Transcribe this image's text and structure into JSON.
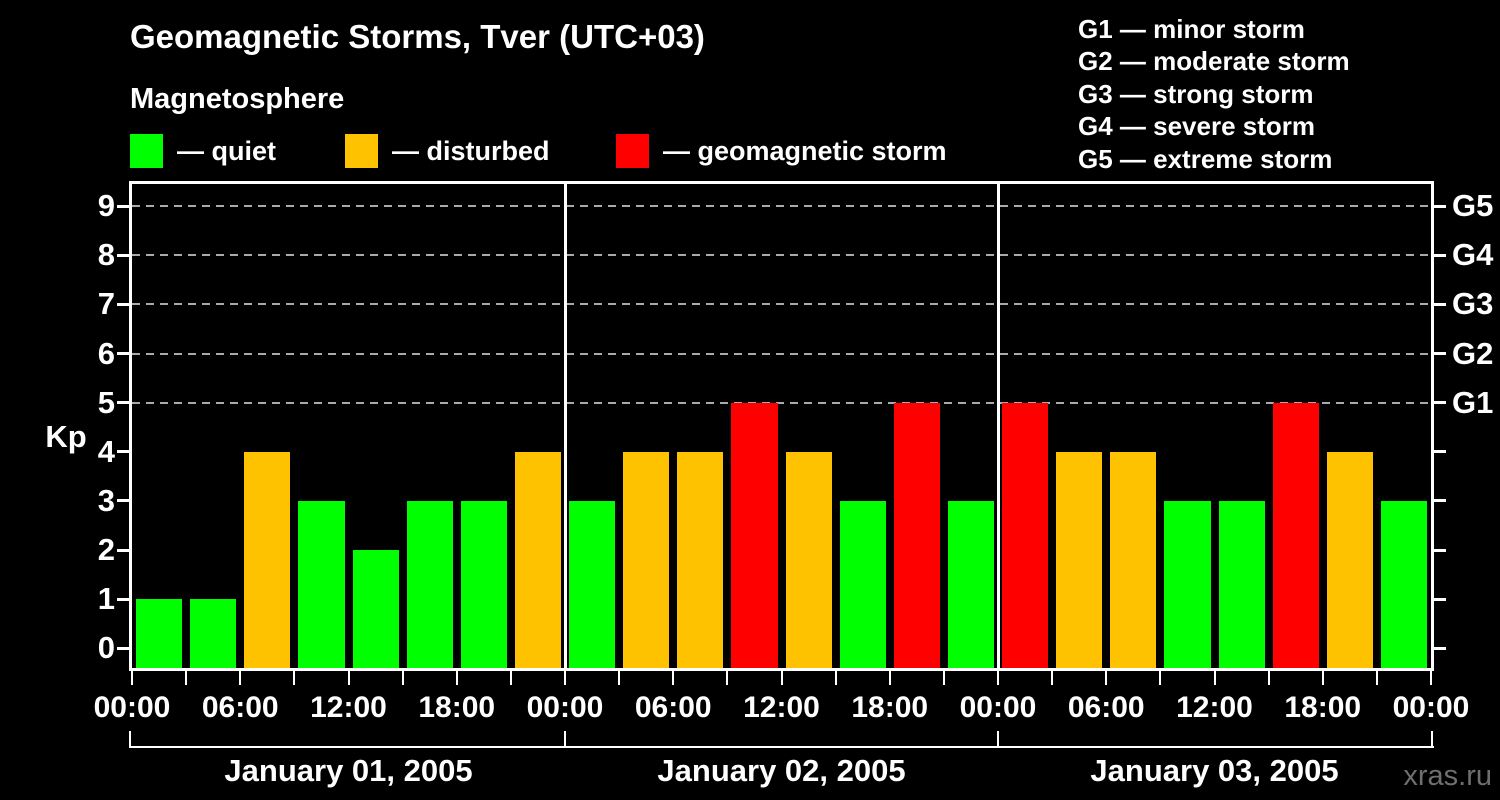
{
  "header": {
    "title": "Geomagnetic Storms, Tver (UTC+03)",
    "subtitle": "Magnetosphere"
  },
  "legend": {
    "items": [
      {
        "name": "quiet",
        "label": "— quiet",
        "color": "#00ff00"
      },
      {
        "name": "disturbed",
        "label": "— disturbed",
        "color": "#ffc200"
      },
      {
        "name": "geomagnetic-storm",
        "label": "— geomagnetic storm",
        "color": "#ff0000"
      }
    ]
  },
  "storm_scale": {
    "items": [
      "G1 — minor storm",
      "G2 — moderate storm",
      "G3 — strong storm",
      "G4 — severe storm",
      "G5 — extreme storm"
    ]
  },
  "chart_data": {
    "type": "bar",
    "title": "Geomagnetic Storms, Tver (UTC+03)",
    "ylabel": "Kp",
    "ylim": [
      -0.4,
      9.45
    ],
    "yticks": [
      0,
      1,
      2,
      3,
      4,
      5,
      6,
      7,
      8,
      9
    ],
    "grid_levels": [
      5,
      6,
      7,
      8,
      9
    ],
    "grid_style": "dashed",
    "right_axis": [
      {
        "level": 5,
        "label": "G1"
      },
      {
        "level": 6,
        "label": "G2"
      },
      {
        "level": 7,
        "label": "G3"
      },
      {
        "level": 8,
        "label": "G4"
      },
      {
        "level": 9,
        "label": "G5"
      }
    ],
    "interval_hours": 3,
    "x_tick_labels": [
      "00:00",
      "06:00",
      "12:00",
      "18:00",
      "00:00",
      "06:00",
      "12:00",
      "18:00",
      "00:00",
      "06:00",
      "12:00",
      "18:00",
      "00:00"
    ],
    "days": [
      {
        "date": "January 01, 2005",
        "values": [
          1,
          1,
          4,
          3,
          2,
          3,
          3,
          4
        ]
      },
      {
        "date": "January 02, 2005",
        "values": [
          3,
          4,
          4,
          5,
          4,
          3,
          5,
          3
        ]
      },
      {
        "date": "January 03, 2005",
        "values": [
          5,
          4,
          4,
          3,
          3,
          5,
          4,
          3
        ]
      }
    ],
    "thresholds": {
      "quiet_max": 3,
      "disturbed_max": 4,
      "storm_min": 5
    },
    "legend_position": "top-left"
  },
  "colors": {
    "background": "#000000",
    "text": "#ffffff",
    "frame": "#ffffff",
    "grid": "#aaaaaa",
    "quiet": "#00ff00",
    "disturbed": "#ffc200",
    "storm": "#ff0000",
    "watermark": "#6f6f6f"
  },
  "watermark": "xras.ru"
}
